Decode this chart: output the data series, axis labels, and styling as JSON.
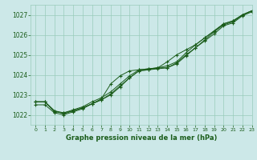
{
  "title": "Graphe pression niveau de la mer (hPa)",
  "xlim": [
    -0.5,
    23
  ],
  "ylim": [
    1021.5,
    1027.5
  ],
  "yticks": [
    1022,
    1023,
    1024,
    1025,
    1026,
    1027
  ],
  "xticks": [
    0,
    1,
    2,
    3,
    4,
    5,
    6,
    7,
    8,
    9,
    10,
    11,
    12,
    13,
    14,
    15,
    16,
    17,
    18,
    19,
    20,
    21,
    22,
    23
  ],
  "bg_color": "#cce8e8",
  "grid_color": "#99ccbb",
  "line_color": "#1a5c1a",
  "series": [
    [
      1022.65,
      1022.65,
      1022.2,
      1022.05,
      1022.2,
      1022.35,
      1022.55,
      1022.75,
      1023.05,
      1023.45,
      1023.85,
      1024.2,
      1024.25,
      1024.3,
      1024.35,
      1024.55,
      1024.95,
      1025.35,
      1025.75,
      1026.15,
      1026.5,
      1026.65,
      1027.0,
      1027.2
    ],
    [
      1022.65,
      1022.65,
      1022.2,
      1022.1,
      1022.25,
      1022.4,
      1022.65,
      1022.85,
      1023.15,
      1023.55,
      1023.95,
      1024.25,
      1024.3,
      1024.35,
      1024.45,
      1024.65,
      1025.1,
      1025.5,
      1025.85,
      1026.2,
      1026.55,
      1026.7,
      1027.0,
      1027.2
    ],
    [
      1022.65,
      1022.65,
      1022.15,
      1022.1,
      1022.2,
      1022.35,
      1022.55,
      1022.8,
      1023.55,
      1023.95,
      1024.2,
      1024.25,
      1024.3,
      1024.35,
      1024.35,
      1024.6,
      1025.0,
      1025.35,
      1025.7,
      1026.05,
      1026.45,
      1026.6,
      1026.95,
      1027.15
    ],
    [
      1022.5,
      1022.5,
      1022.1,
      1022.0,
      1022.15,
      1022.3,
      1022.55,
      1022.75,
      1023.0,
      1023.4,
      1023.85,
      1024.2,
      1024.25,
      1024.35,
      1024.65,
      1025.0,
      1025.25,
      1025.5,
      1025.85,
      1026.2,
      1026.55,
      1026.7,
      1027.0,
      1027.2
    ]
  ]
}
